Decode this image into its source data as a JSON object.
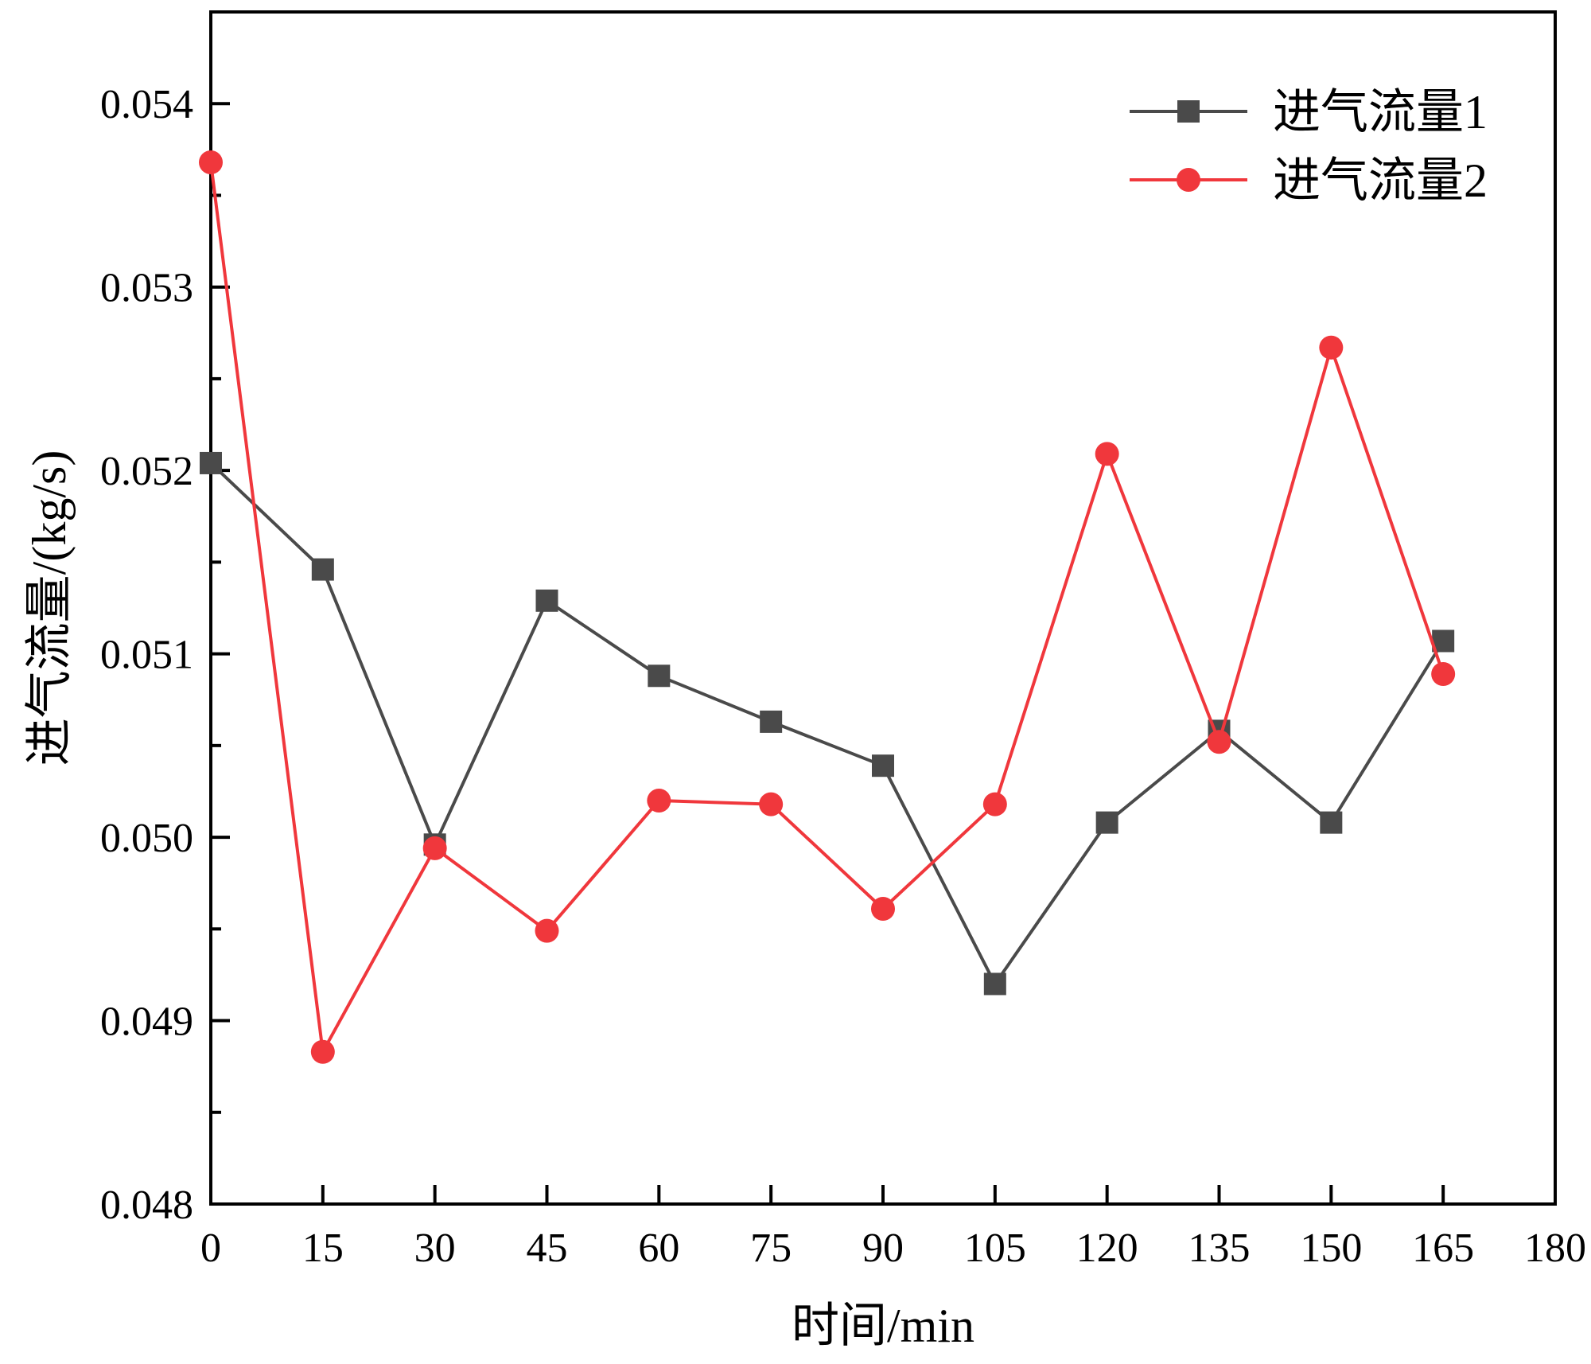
{
  "chart_data": {
    "type": "line",
    "x": [
      0,
      15,
      30,
      45,
      60,
      75,
      90,
      105,
      120,
      135,
      150,
      165
    ],
    "series": [
      {
        "name": "进气流量1",
        "color": "#4a4a4a",
        "marker": "square",
        "values": [
          0.05204,
          0.05146,
          0.04996,
          0.05129,
          0.05088,
          0.05063,
          0.05039,
          0.0492,
          0.05008,
          0.05058,
          0.05008,
          0.05107
        ]
      },
      {
        "name": "进气流量2",
        "color": "#f0373c",
        "marker": "circle",
        "values": [
          0.05368,
          0.04883,
          0.04994,
          0.04949,
          0.0502,
          0.05018,
          0.04961,
          0.05018,
          0.05209,
          0.05052,
          0.05267,
          0.05089
        ]
      }
    ],
    "xlabel": "时间/min",
    "ylabel": "进气流量/(kg/s)",
    "xlim": [
      0,
      180
    ],
    "ylim": [
      0.048,
      0.0545
    ],
    "xticks": [
      "0",
      "15",
      "30",
      "45",
      "60",
      "75",
      "90",
      "105",
      "120",
      "135",
      "150",
      "165",
      "180"
    ],
    "yticks": [
      "0.048",
      "0.049",
      "0.050",
      "0.051",
      "0.052",
      "0.053",
      "0.054"
    ],
    "grid": false,
    "legend_position": "top-right"
  }
}
